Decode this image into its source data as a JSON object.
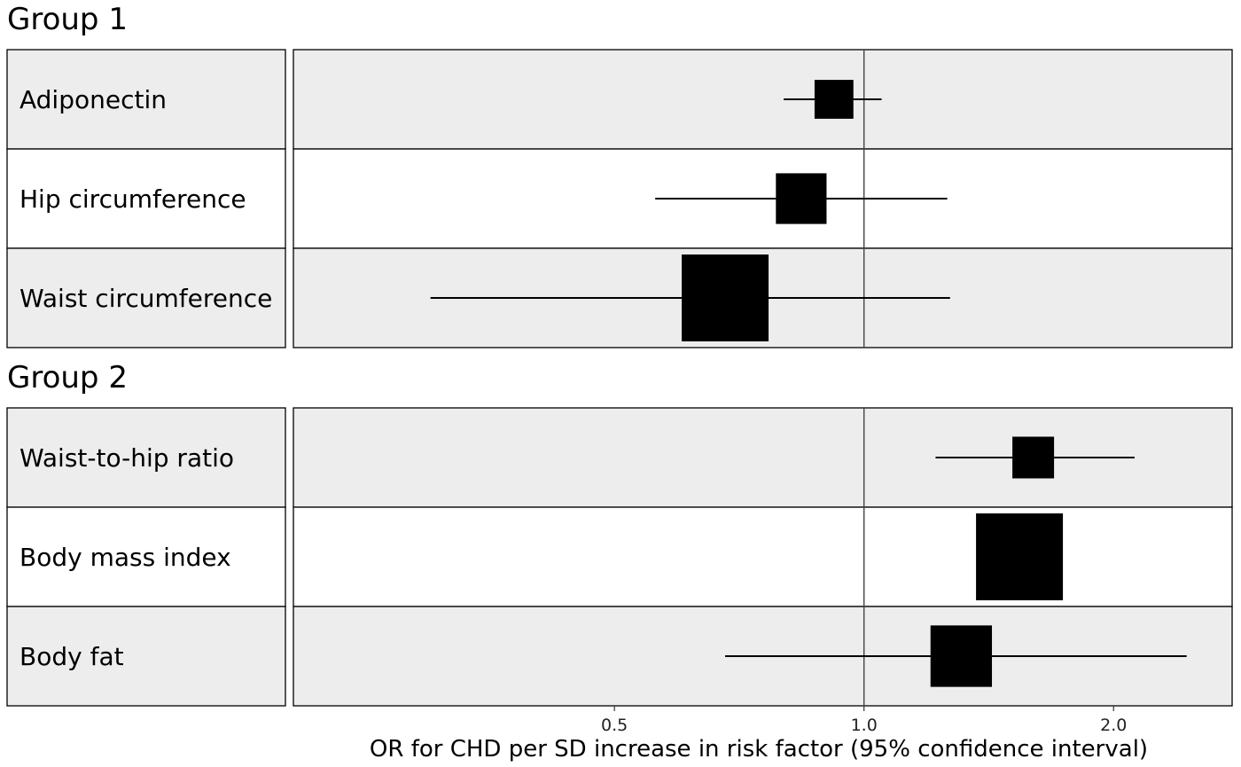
{
  "chart_data": {
    "type": "forest",
    "scale": "log",
    "xlabel": "OR for CHD per SD increase in risk factor (95% confidence interval)",
    "x_ticks": [
      {
        "value": 0.5,
        "label": "0.5"
      },
      {
        "value": 1.0,
        "label": "1.0"
      },
      {
        "value": 2.0,
        "label": "2.0"
      }
    ],
    "xlim": [
      0.205,
      2.78
    ],
    "reference_line": 1.0,
    "groups": [
      {
        "title": "Group 1",
        "rows": [
          {
            "label": "Adiponectin",
            "estimate": 0.92,
            "lower": 0.8,
            "upper": 1.05,
            "weight": 0.2
          },
          {
            "label": "Hip circumference",
            "estimate": 0.84,
            "lower": 0.56,
            "upper": 1.26,
            "weight": 0.34
          },
          {
            "label": "Waist circumference",
            "estimate": 0.68,
            "lower": 0.3,
            "upper": 1.27,
            "weight": 1.0
          }
        ]
      },
      {
        "title": "Group 2",
        "rows": [
          {
            "label": "Waist-to-hip ratio",
            "estimate": 1.6,
            "lower": 1.22,
            "upper": 2.12,
            "weight": 0.23
          },
          {
            "label": "Body mass index",
            "estimate": 1.54,
            "lower": 1.42,
            "upper": 1.73,
            "weight": 1.0
          },
          {
            "label": "Body fat",
            "estimate": 1.31,
            "lower": 0.68,
            "upper": 2.45,
            "weight": 0.5
          }
        ]
      }
    ]
  }
}
